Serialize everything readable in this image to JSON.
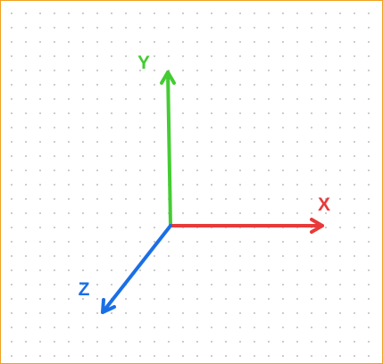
{
  "axes": {
    "x": {
      "label": "X",
      "color": "#e83a3a"
    },
    "y": {
      "label": "Y",
      "color": "#44cc33"
    },
    "z": {
      "label": "Z",
      "color": "#1a6fe6"
    }
  }
}
